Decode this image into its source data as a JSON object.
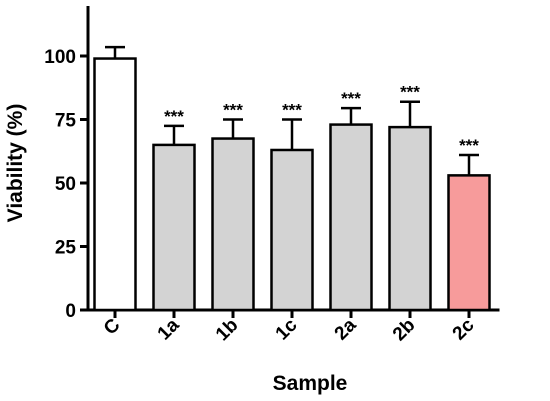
{
  "chart_data": {
    "type": "bar",
    "xlabel": "Sample",
    "ylabel": "Viability (%)",
    "ylim": [
      0,
      120
    ],
    "yticks": [
      0,
      25,
      50,
      75,
      100
    ],
    "categories": [
      "C",
      "1a",
      "1b",
      "1c",
      "2a",
      "2b",
      "2c"
    ],
    "values": [
      99,
      65,
      67.5,
      63,
      73,
      72,
      53
    ],
    "errors": [
      4.5,
      7.5,
      7.5,
      12,
      6.5,
      10,
      8
    ],
    "significance": [
      "",
      "***",
      "***",
      "***",
      "***",
      "***",
      "***"
    ],
    "colors": [
      "#ffffff",
      "#d3d3d3",
      "#d3d3d3",
      "#d3d3d3",
      "#d3d3d3",
      "#d3d3d3",
      "#f79b9b"
    ],
    "grid": false,
    "legend": "none"
  }
}
